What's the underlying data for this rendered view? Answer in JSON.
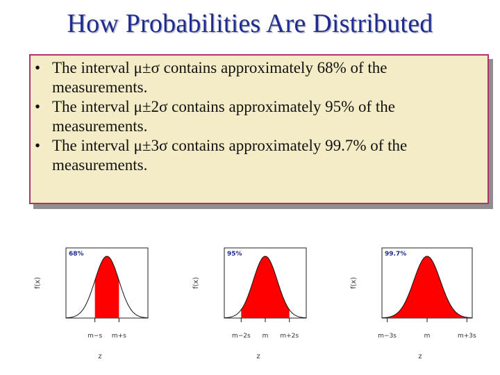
{
  "title": "How Probabilities Are Distributed",
  "bullets": [
    {
      "marker": "•",
      "text": "The interval μ±σ contains approximately 68% of the measurements."
    },
    {
      "marker": "•",
      "text": "The interval μ±2σ contains approximately 95% of the measurements."
    },
    {
      "marker": "•",
      "text": "The interval μ±3σ contains approximately 99.7% of the measurements."
    }
  ],
  "colors": {
    "title": "#1f2c8f",
    "box_fill": "#f3ecc6",
    "box_border": "#b0306a",
    "curve_fill": "#ff0000",
    "label_blue": "#1f2c8f"
  },
  "chart_data": [
    {
      "type": "area",
      "percent_label": "68%",
      "k": 1,
      "ylabel": "f(x)",
      "xlabel": "z",
      "tick_labels": [
        "m−s",
        "m+s"
      ]
    },
    {
      "type": "area",
      "percent_label": "95%",
      "k": 2,
      "ylabel": "f(x)",
      "xlabel": "z",
      "tick_labels": [
        "m−2s",
        "m",
        "m+2s"
      ]
    },
    {
      "type": "area",
      "percent_label": "99.7%",
      "k": 3,
      "ylabel": "f(x)",
      "xlabel": "z",
      "tick_labels": [
        "m−3s",
        "m",
        "m+3s"
      ]
    }
  ]
}
